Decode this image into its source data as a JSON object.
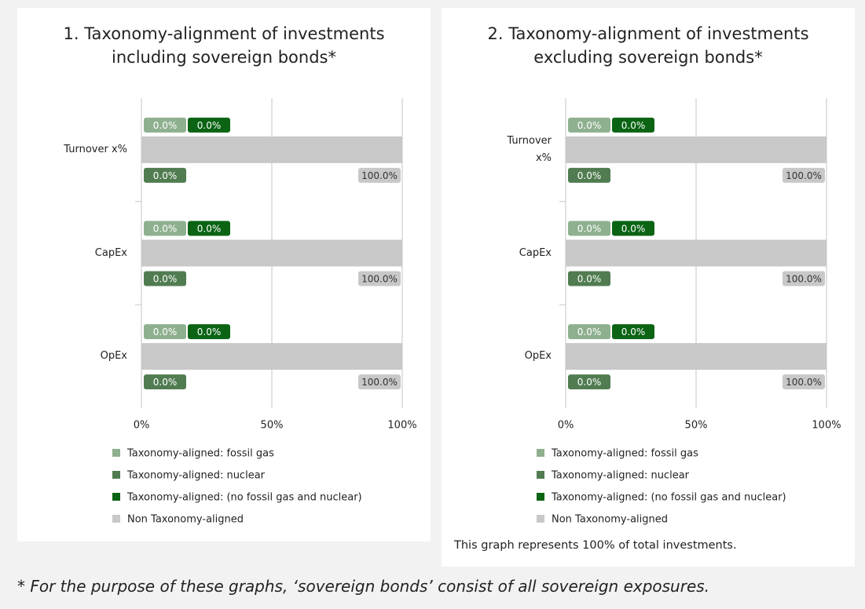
{
  "chart_data": [
    {
      "type": "bar",
      "orientation": "horizontal",
      "stacked": true,
      "title": "1. Taxonomy-alignment of investments including sovereign bonds*",
      "categories": [
        "Turnover x%",
        "CapEx",
        "OpEx"
      ],
      "series": [
        {
          "name": "Taxonomy-aligned: fossil gas",
          "color": "#8fb08f",
          "values": [
            0,
            0,
            0
          ],
          "value_labels": [
            "0.0%",
            "0.0%",
            "0.0%"
          ]
        },
        {
          "name": "Taxonomy-aligned: nuclear",
          "color": "#517c51",
          "values": [
            0,
            0,
            0
          ],
          "value_labels": [
            "0.0%",
            "0.0%",
            "0.0%"
          ]
        },
        {
          "name": "Taxonomy-aligned: (no fossil gas and nuclear)",
          "color": "#0b6414",
          "values": [
            0,
            0,
            0
          ],
          "value_labels": [
            "0.0%",
            "0.0%",
            "0.0%"
          ]
        },
        {
          "name": "Non Taxonomy-aligned",
          "color": "#c8c8c8",
          "values": [
            100,
            100,
            100
          ],
          "value_labels": [
            "100.0%",
            "100.0%",
            "100.0%"
          ]
        }
      ],
      "xlim": [
        0,
        100
      ],
      "xticks": [
        {
          "value": 0,
          "label": "0%"
        },
        {
          "value": 50,
          "label": "50%"
        },
        {
          "value": 100,
          "label": "100%"
        }
      ],
      "grid": true,
      "legend": "bottom"
    },
    {
      "type": "bar",
      "orientation": "horizontal",
      "stacked": true,
      "title": "2. Taxonomy-alignment of investments excluding sovereign bonds*",
      "categories": [
        "Turnover x%",
        "CapEx",
        "OpEx"
      ],
      "series": [
        {
          "name": "Taxonomy-aligned: fossil gas",
          "color": "#8fb08f",
          "values": [
            0,
            0,
            0
          ],
          "value_labels": [
            "0.0%",
            "0.0%",
            "0.0%"
          ]
        },
        {
          "name": "Taxonomy-aligned: nuclear",
          "color": "#517c51",
          "values": [
            0,
            0,
            0
          ],
          "value_labels": [
            "0.0%",
            "0.0%",
            "0.0%"
          ]
        },
        {
          "name": "Taxonomy-aligned: (no fossil gas and nuclear)",
          "color": "#0b6414",
          "values": [
            0,
            0,
            0
          ],
          "value_labels": [
            "0.0%",
            "0.0%",
            "0.0%"
          ]
        },
        {
          "name": "Non Taxonomy-aligned",
          "color": "#c8c8c8",
          "values": [
            100,
            100,
            100
          ],
          "value_labels": [
            "100.0%",
            "100.0%",
            "100.0%"
          ]
        }
      ],
      "xlim": [
        0,
        100
      ],
      "xticks": [
        {
          "value": 0,
          "label": "0%"
        },
        {
          "value": 50,
          "label": "50%"
        },
        {
          "value": 100,
          "label": "100%"
        }
      ],
      "grid": true,
      "legend": "bottom",
      "note": "This graph represents 100% of total investments."
    }
  ],
  "footnote": "* For the purpose of these graphs, ‘sovereign bonds’ consist of all sovereign exposures."
}
